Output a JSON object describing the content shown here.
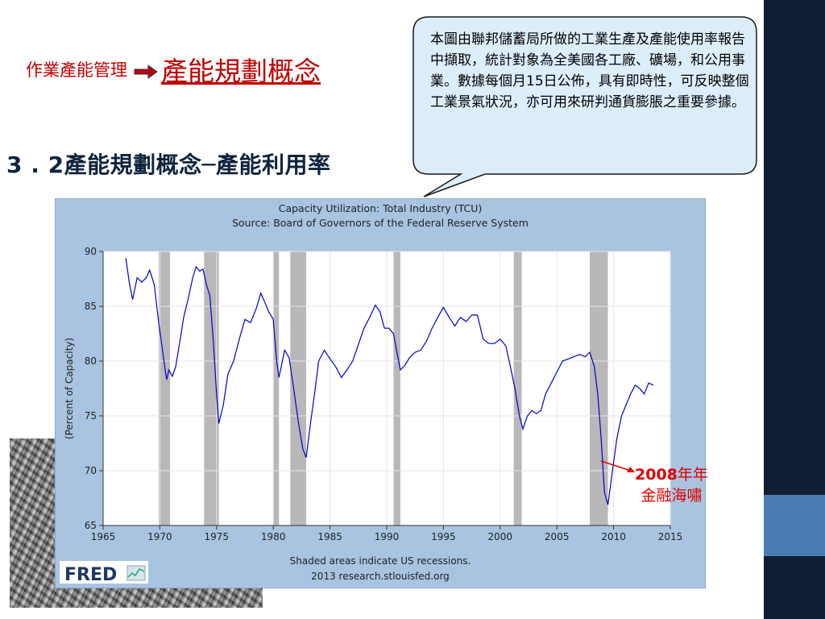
{
  "slide": {
    "nav_sub": "作業產能管理",
    "nav_main": "產能規劃概念",
    "heading": "3 . 2產能規劃概念─產能利用率",
    "callout": "本圖由聯邦儲蓄局所做的工業生產及產能使用率報告中擷取，統計對象為全美國各工廠、礦場，和公用事業。數據每個月15日公佈，具有即時性，可反映整個工業景氣狀況，亦可用來研判通貨膨脹之重要參據。",
    "annotation_year": "2008",
    "annotation_year_suffix": "年年",
    "annotation_line2": "金融海嘯",
    "colors": {
      "sidebar": "#0f1e33",
      "accent": "#4a7db5",
      "title_red": "#c00000",
      "line": "#0000cc",
      "chart_bg": "#a8c4e0",
      "recession": "#b8b8b8"
    }
  },
  "chart_data": {
    "type": "line",
    "title": "Capacity Utilization: Total Industry (TCU)",
    "subtitle": "Source: Board of Governors of the Federal Reserve System",
    "ylabel": "(Percent of Capacity)",
    "xlabel": "",
    "footer1": "Shaded areas indicate US recessions.",
    "footer2": "2013 research.stlouisfed.org",
    "logo": "FRED",
    "xlim": [
      1965,
      2015
    ],
    "ylim": [
      65,
      90
    ],
    "xticks": [
      1965,
      1970,
      1975,
      1980,
      1985,
      1990,
      1995,
      2000,
      2005,
      2010,
      2015
    ],
    "yticks": [
      65,
      70,
      75,
      80,
      85,
      90
    ],
    "grid": true,
    "recessions": [
      [
        1969.9,
        1970.9
      ],
      [
        1973.9,
        1975.2
      ],
      [
        1980.0,
        1980.5
      ],
      [
        1981.5,
        1982.9
      ],
      [
        1990.6,
        1991.2
      ],
      [
        2001.2,
        2001.9
      ],
      [
        2007.9,
        2009.5
      ]
    ],
    "series": [
      {
        "x": [
          1967.0,
          1967.3,
          1967.6,
          1968.0,
          1968.4,
          1968.8,
          1969.1,
          1969.5,
          1969.9,
          1970.3,
          1970.6,
          1970.8,
          1971.1,
          1971.4,
          1971.8,
          1972.1,
          1972.5,
          1972.9,
          1973.2,
          1973.5,
          1973.8,
          1974.1,
          1974.4,
          1974.7,
          1975.0,
          1975.2,
          1975.6,
          1976.0,
          1976.5,
          1977.0,
          1977.5,
          1978.0,
          1978.5,
          1978.9,
          1979.2,
          1979.6,
          1980.0,
          1980.3,
          1980.5,
          1980.7,
          1981.0,
          1981.4,
          1981.8,
          1982.2,
          1982.6,
          1982.9,
          1983.3,
          1983.7,
          1984.0,
          1984.5,
          1985.0,
          1985.5,
          1986.0,
          1986.5,
          1987.0,
          1987.5,
          1988.0,
          1988.5,
          1989.0,
          1989.4,
          1989.8,
          1990.2,
          1990.6,
          1990.9,
          1991.2,
          1991.6,
          1992.0,
          1992.5,
          1993.0,
          1993.5,
          1994.0,
          1994.5,
          1995.0,
          1995.5,
          1996.0,
          1996.5,
          1997.0,
          1997.5,
          1998.0,
          1998.5,
          1999.0,
          1999.5,
          2000.0,
          2000.5,
          2000.9,
          2001.3,
          2001.7,
          2002.0,
          2002.4,
          2002.8,
          2003.2,
          2003.6,
          2004.0,
          2004.5,
          2005.0,
          2005.5,
          2006.0,
          2006.5,
          2007.0,
          2007.5,
          2007.9,
          2008.3,
          2008.6,
          2008.9,
          2009.2,
          2009.5,
          2009.9,
          2010.3,
          2010.7,
          2011.1,
          2011.5,
          2011.9,
          2012.3,
          2012.7,
          2013.1,
          2013.5
        ],
        "y": [
          89.4,
          87.2,
          85.6,
          87.6,
          87.2,
          87.6,
          88.3,
          87.0,
          83.5,
          80.5,
          78.3,
          79.2,
          78.6,
          79.5,
          82.0,
          84.0,
          85.7,
          87.6,
          88.6,
          88.2,
          88.4,
          87.0,
          86.0,
          82.0,
          77.0,
          74.3,
          76.0,
          78.8,
          80.0,
          82.0,
          83.8,
          83.5,
          84.8,
          86.2,
          85.5,
          84.5,
          83.8,
          80.0,
          78.5,
          79.5,
          81.0,
          80.3,
          77.5,
          74.5,
          72.0,
          71.2,
          74.5,
          77.5,
          80.0,
          81.0,
          80.2,
          79.5,
          78.5,
          79.2,
          80.0,
          81.5,
          83.0,
          84.0,
          85.1,
          84.5,
          83.0,
          83.0,
          82.5,
          80.8,
          79.2,
          79.6,
          80.3,
          80.8,
          81.0,
          81.8,
          83.0,
          84.0,
          84.9,
          84.0,
          83.2,
          84.0,
          83.6,
          84.2,
          84.2,
          82.0,
          81.6,
          81.6,
          82.0,
          81.4,
          79.5,
          77.5,
          75.0,
          73.8,
          75.0,
          75.5,
          75.2,
          75.5,
          77.0,
          78.0,
          79.0,
          80.0,
          80.2,
          80.4,
          80.6,
          80.4,
          80.8,
          79.5,
          77.0,
          73.0,
          68.0,
          66.9,
          70.0,
          73.0,
          75.0,
          76.0,
          77.0,
          77.8,
          77.5,
          77.0,
          78.0,
          77.8
        ]
      }
    ]
  }
}
